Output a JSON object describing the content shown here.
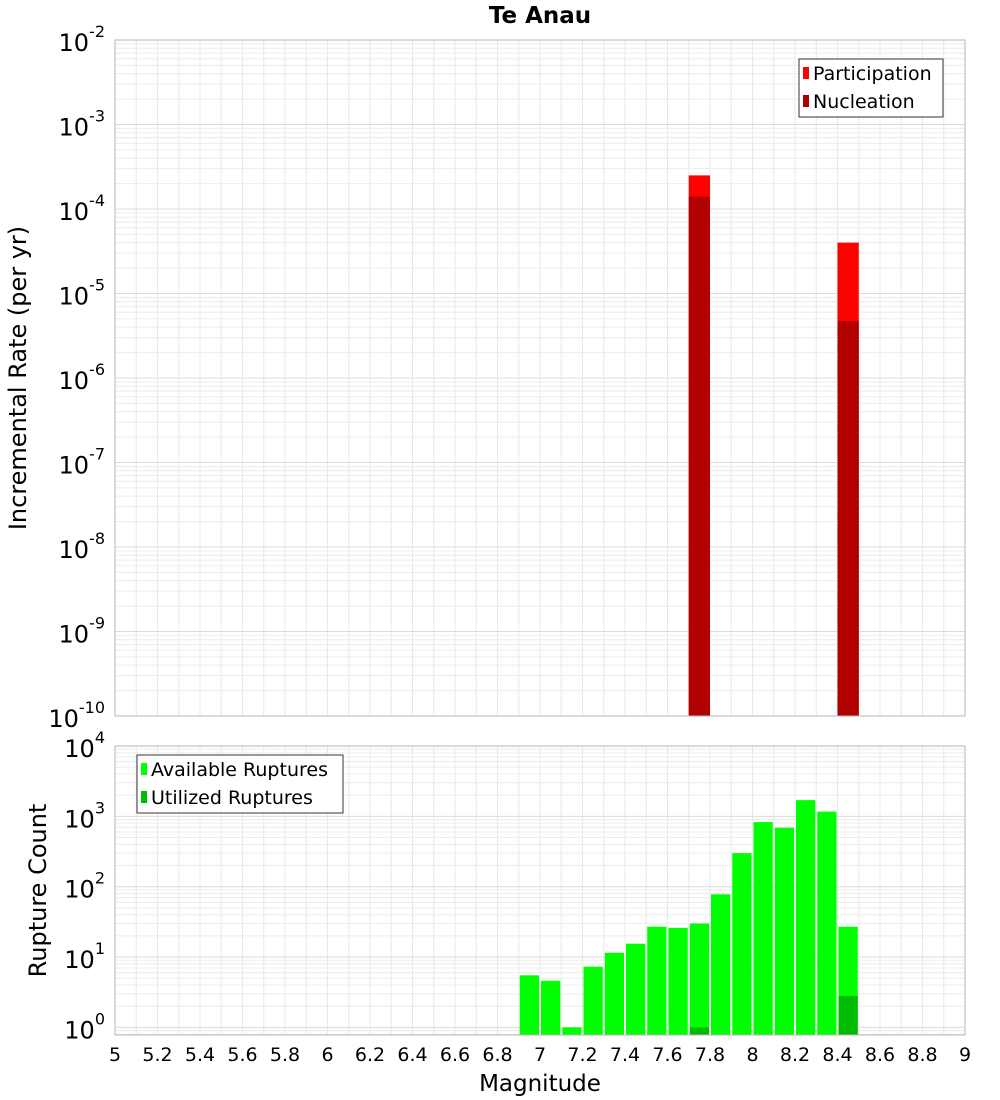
{
  "chart_data": [
    {
      "type": "bar",
      "title": "Te Anau",
      "ylabel": "Incremental Rate (per yr)",
      "xlabel": "",
      "xlim": [
        5,
        9
      ],
      "ylim": [
        1e-10,
        0.01
      ],
      "yscale": "log",
      "bar_width": 0.1,
      "grid": true,
      "legend_position": "top-right",
      "y_ticks": [
        {
          "base": "10",
          "exp": "-10",
          "value": 1e-10
        },
        {
          "base": "10",
          "exp": "-9",
          "value": 1e-09
        },
        {
          "base": "10",
          "exp": "-8",
          "value": 1e-08
        },
        {
          "base": "10",
          "exp": "-7",
          "value": 1e-07
        },
        {
          "base": "10",
          "exp": "-6",
          "value": 1e-06
        },
        {
          "base": "10",
          "exp": "-5",
          "value": 1e-05
        },
        {
          "base": "10",
          "exp": "-4",
          "value": 0.0001
        },
        {
          "base": "10",
          "exp": "-3",
          "value": 0.001
        },
        {
          "base": "10",
          "exp": "-2",
          "value": 0.01
        }
      ],
      "series": [
        {
          "name": "Participation",
          "color": "#ff0000",
          "x": [
            7.75,
            8.45
          ],
          "values": [
            0.00025,
            4e-05
          ]
        },
        {
          "name": "Nucleation",
          "color": "#b00000",
          "x": [
            7.75,
            8.45
          ],
          "values": [
            0.00014,
            4.7e-06
          ]
        }
      ]
    },
    {
      "type": "bar",
      "title": "",
      "ylabel": "Rupture Count",
      "xlabel": "Magnitude",
      "xlim": [
        5,
        9
      ],
      "ylim": [
        0.78,
        10000
      ],
      "yscale": "log",
      "bar_width": 0.1,
      "grid": true,
      "legend_position": "top-left",
      "x_ticks": [
        "5",
        "5.2",
        "5.4",
        "5.6",
        "5.8",
        "6",
        "6.2",
        "6.4",
        "6.6",
        "6.8",
        "7",
        "7.2",
        "7.4",
        "7.6",
        "7.8",
        "8",
        "8.2",
        "8.4",
        "8.6",
        "8.8",
        "9"
      ],
      "y_ticks": [
        {
          "base": "10",
          "exp": "0",
          "value": 1
        },
        {
          "base": "10",
          "exp": "1",
          "value": 10
        },
        {
          "base": "10",
          "exp": "2",
          "value": 100
        },
        {
          "base": "10",
          "exp": "3",
          "value": 1000
        },
        {
          "base": "10",
          "exp": "4",
          "value": 10000
        }
      ],
      "series": [
        {
          "name": "Available Ruptures",
          "color": "#00ff00",
          "x": [
            6.95,
            7.05,
            7.15,
            7.25,
            7.35,
            7.45,
            7.55,
            7.65,
            7.75,
            7.85,
            7.95,
            8.05,
            8.15,
            8.25,
            8.35,
            8.45
          ],
          "values": [
            5.5,
            4.6,
            1.0,
            7.3,
            11.5,
            15.5,
            27,
            26,
            30,
            78,
            300,
            830,
            690,
            1700,
            1170,
            27
          ]
        },
        {
          "name": "Utilized Ruptures",
          "color": "#00bb00",
          "x": [
            7.75,
            8.45
          ],
          "values": [
            1.0,
            2.8
          ]
        }
      ]
    }
  ]
}
